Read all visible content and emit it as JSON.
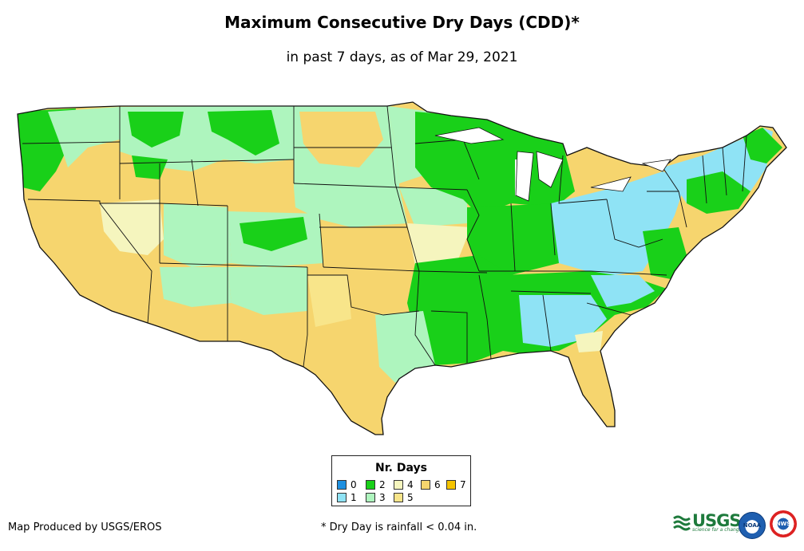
{
  "title": "Maximum Consecutive Dry Days (CDD)*",
  "subtitle": "in past 7 days, as of Mar 29, 2021",
  "legend": {
    "title": "Nr. Days",
    "items": [
      {
        "label": "0",
        "color": "#1e90e0"
      },
      {
        "label": "1",
        "color": "#8fe3f5"
      },
      {
        "label": "2",
        "color": "#19d019"
      },
      {
        "label": "3",
        "color": "#aef5be"
      },
      {
        "label": "4",
        "color": "#f5f5be"
      },
      {
        "label": "5",
        "color": "#f8e58a"
      },
      {
        "label": "6",
        "color": "#f6d56e"
      },
      {
        "label": "7",
        "color": "#f5c400"
      }
    ]
  },
  "footer": {
    "producer": "Map Produced by USGS/EROS",
    "note": "* Dry Day is rainfall < 0.04 in."
  },
  "logos": {
    "usgs": "USGS",
    "usgs_tagline": "science for a changing world",
    "noaa": "NOAA",
    "nws": "NWS"
  }
}
